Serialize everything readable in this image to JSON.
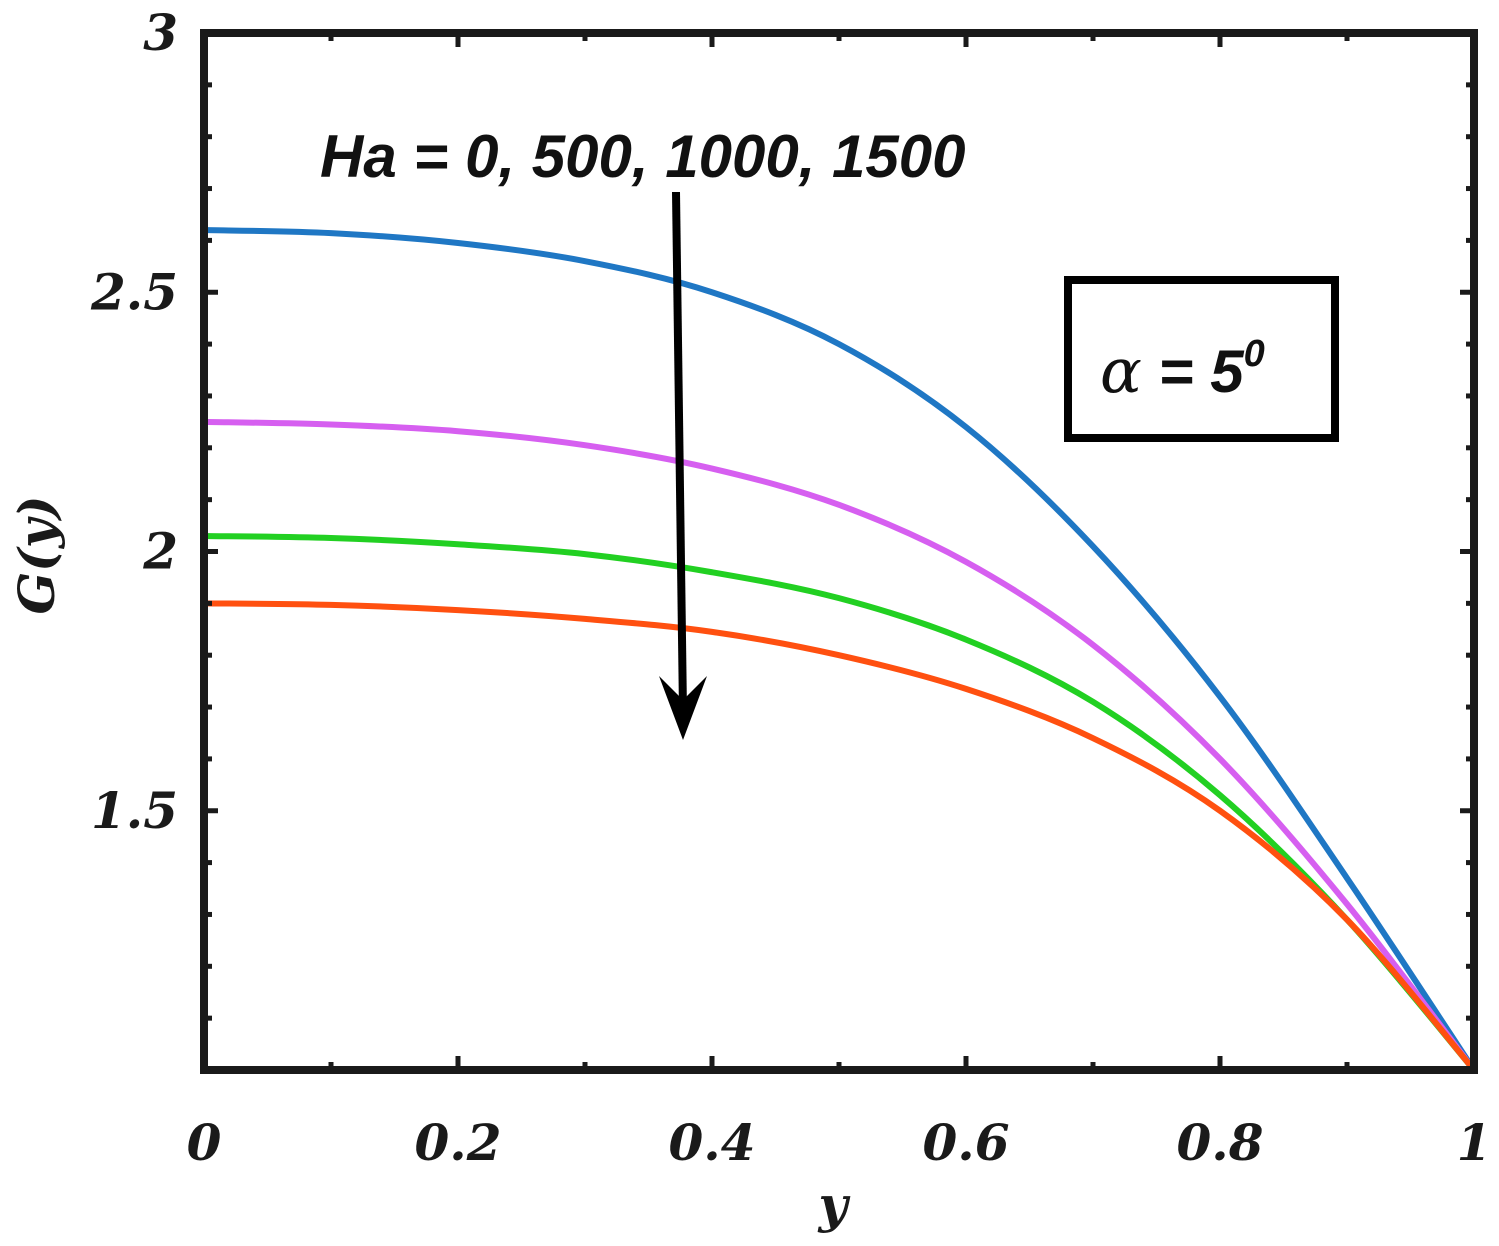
{
  "chart_data": {
    "type": "line",
    "xlabel": "y",
    "ylabel": "G(y)",
    "xlim": [
      0,
      1
    ],
    "ylim": [
      1,
      3
    ],
    "xticks": [
      0,
      0.2,
      0.4,
      0.6,
      0.8,
      1
    ],
    "xtick_labels": [
      "0",
      "0.2",
      "0.4",
      "0.6",
      "0.8",
      "1"
    ],
    "yticks": [
      1.5,
      2,
      2.5,
      3
    ],
    "ytick_labels": [
      "1.5",
      "2",
      "2.5",
      "3"
    ],
    "grid": false,
    "x": [
      0,
      0.1,
      0.2,
      0.3,
      0.4,
      0.5,
      0.6,
      0.7,
      0.8,
      0.9,
      1.0
    ],
    "series": [
      {
        "color": "#1f77c4",
        "values": [
          2.62,
          2.614,
          2.595,
          2.56,
          2.5,
          2.4,
          2.24,
          2.01,
          1.72,
          1.37,
          1.0
        ]
      },
      {
        "color": "#d65ff0",
        "values": [
          2.25,
          2.245,
          2.232,
          2.205,
          2.16,
          2.09,
          1.98,
          1.82,
          1.6,
          1.32,
          1.0
        ]
      },
      {
        "color": "#22d022",
        "values": [
          2.03,
          2.026,
          2.014,
          1.995,
          1.96,
          1.91,
          1.83,
          1.71,
          1.53,
          1.29,
          1.0
        ]
      },
      {
        "color": "#ff5010",
        "values": [
          1.9,
          1.897,
          1.887,
          1.87,
          1.845,
          1.8,
          1.735,
          1.64,
          1.5,
          1.29,
          1.0
        ]
      }
    ],
    "annotations": {
      "ha_text": "Ha = 0, 500, 1000, 1500",
      "alpha_symbol": "α",
      "alpha_text": " = 5",
      "alpha_superscript": "0"
    }
  }
}
